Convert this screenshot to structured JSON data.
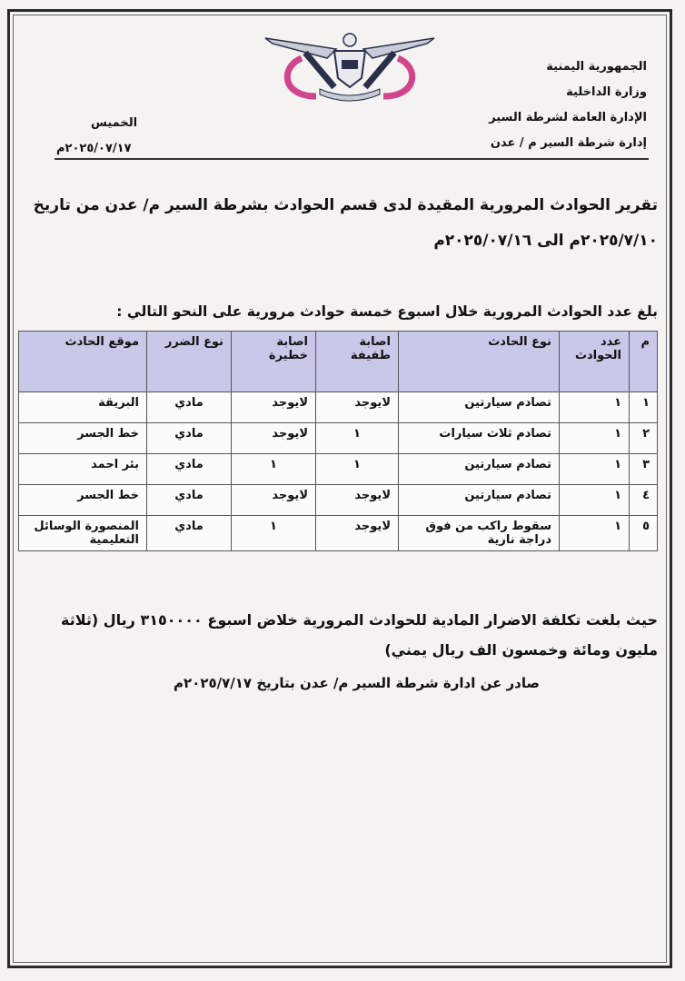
{
  "header": {
    "lines": [
      "الجمهورية اليمنية",
      "وزارة الداخلية",
      "الإدارة العامة لشرطة السير",
      "إدارة شرطة السير م / عدن"
    ],
    "day": "الخميس",
    "date": "٢٠٢٥/٠٧/١٧م",
    "emblem_colors": {
      "ring": "#d0458c",
      "ink": "#2a2f4a"
    }
  },
  "title": {
    "line1": "تقرير الحوادث المرورية المقيدة لدى قسم الحوادث بشرطة السير م/ عدن من تاريخ",
    "line2": "٢٠٢٥/٧/١٠م الى ٢٠٢٥/٠٧/١٦م"
  },
  "intro": "بلغ عدد الحوادث المرورية خلال اسبوع خمسة حوادث مرورية على النحو التالي :",
  "table": {
    "header_color": "#c8c8e8",
    "columns": [
      "م",
      "عدد الحوادث",
      "نوع الحادث",
      "اصابة طفيفة",
      "اصابة خطيرة",
      "نوع الضرر",
      "موقع الحادث"
    ],
    "rows": [
      [
        "١",
        "١",
        "تصادم سيارتين",
        "لايوجد",
        "لايوجد",
        "مادي",
        "البريقة"
      ],
      [
        "٢",
        "١",
        "تصادم ثلاث سيارات",
        "١",
        "لايوجد",
        "مادي",
        "خط الجسر"
      ],
      [
        "٣",
        "١",
        "تصادم سيارتين",
        "١",
        "١",
        "مادي",
        "بئر احمد"
      ],
      [
        "٤",
        "١",
        "تصادم سيارتين",
        "لايوجد",
        "لايوجد",
        "مادي",
        "خط الجسر"
      ],
      [
        "٥",
        "١",
        "سقوط راكب من فوق دراجة نارية",
        "لايوجد",
        "١",
        "مادي",
        "المنصورة الوسائل التعليمية"
      ]
    ]
  },
  "cost": {
    "line1": "حيث بلغت تكلفة الاضرار المادية للحوادث المرورية خلاض اسبوع ٣١٥٠٠٠٠ ريال (ثلاثة",
    "line2": "مليون ومائة وخمسون الف ريال يمني)"
  },
  "issued": "صادر عن ادارة شرطة السير  م/ عدن بتاريخ ٢٠٢٥/٧/١٧م"
}
